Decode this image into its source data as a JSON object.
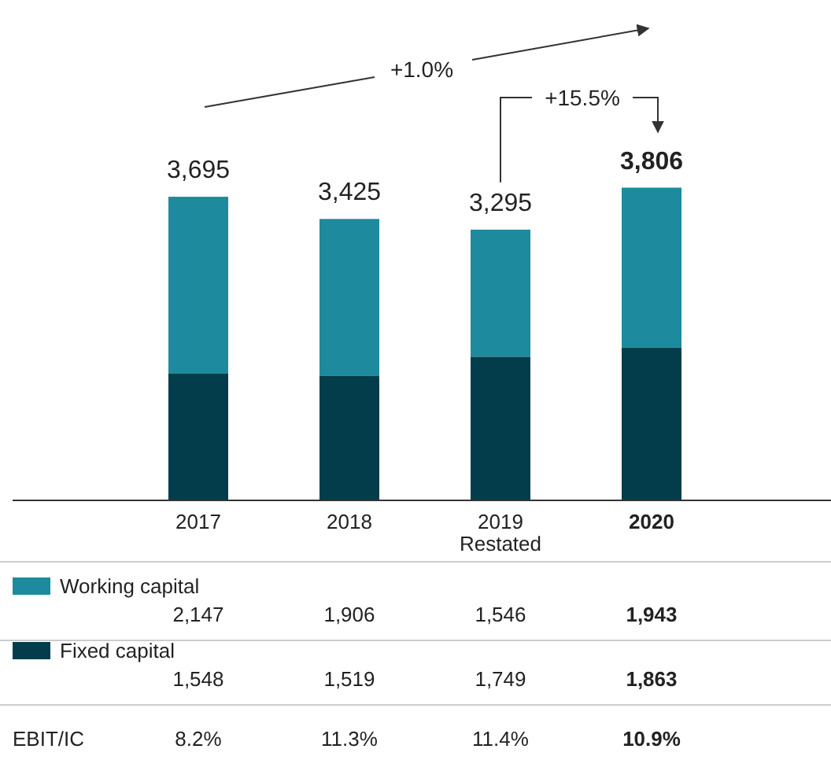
{
  "chart_data": {
    "type": "bar",
    "stacked": true,
    "categories": [
      "2017",
      "2018",
      "2019 Restated",
      "2020"
    ],
    "series": [
      {
        "name": "Fixed capital",
        "color": "#033d4b",
        "values": [
          1548,
          1519,
          1749,
          1863
        ],
        "value_labels": [
          "1,548",
          "1,519",
          "1,749",
          "1,863"
        ]
      },
      {
        "name": "Working capital",
        "color": "#1e8a9e",
        "values": [
          2147,
          1906,
          1546,
          1943
        ],
        "value_labels": [
          "2,147",
          "1,906",
          "1,546",
          "1,943"
        ]
      }
    ],
    "tick_labels": "x",
    "legend": "bottom",
    "totals": [
      "3,695",
      "3,425",
      "3,295",
      "3,806"
    ],
    "annotations": [
      "+1.0%",
      "+15.5%",
      "EBIT/IC",
      "8.2%",
      "11.3%",
      "11.4%",
      "10.9%"
    ]
  }
}
